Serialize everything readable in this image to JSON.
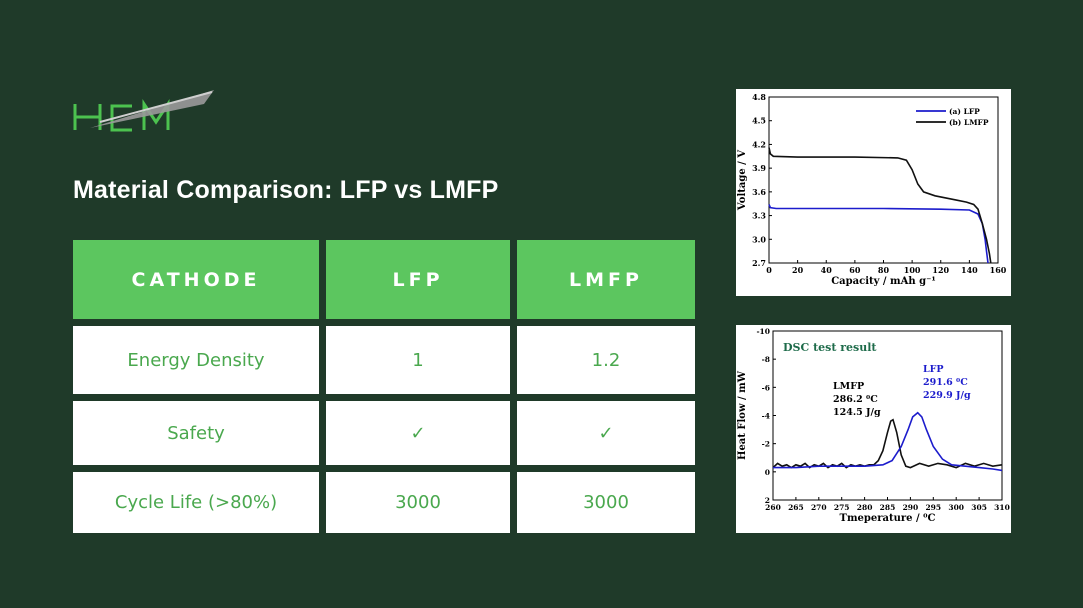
{
  "brand": {
    "logo_text": "HCM",
    "colors": {
      "green": "#4cc24f",
      "gray": "#9a9a9a"
    }
  },
  "page": {
    "title": "Material Comparison: LFP vs LMFP"
  },
  "table": {
    "headers": [
      "CATHODE",
      "LFP",
      "LMFP"
    ],
    "rows": [
      [
        "Energy Density",
        "1",
        "1.2"
      ],
      [
        "Safety",
        "✓",
        "✓"
      ],
      [
        "Cycle Life (>80%)",
        "3000",
        "3000"
      ]
    ],
    "colors": {
      "header_bg": "#5cc65f",
      "text": "#4aa84e",
      "cell_bg": "#ffffff"
    }
  },
  "chart_data": [
    {
      "type": "line",
      "title": "",
      "xlabel": "Capacity / mAh g⁻¹",
      "ylabel": "Voltage / V",
      "xlim": [
        0,
        160
      ],
      "ylim": [
        2.7,
        4.8
      ],
      "xticks": [
        0,
        20,
        40,
        60,
        80,
        100,
        120,
        140,
        160
      ],
      "yticks": [
        2.7,
        3.0,
        3.3,
        3.6,
        3.9,
        4.2,
        4.5,
        4.8
      ],
      "legend_position": "top-right",
      "series": [
        {
          "name": "(a) LFP",
          "color": "#1c1ccc",
          "points": [
            [
              0,
              3.44
            ],
            [
              1,
              3.4
            ],
            [
              5,
              3.39
            ],
            [
              40,
              3.39
            ],
            [
              80,
              3.39
            ],
            [
              120,
              3.38
            ],
            [
              140,
              3.37
            ],
            [
              146,
              3.32
            ],
            [
              149,
              3.2
            ],
            [
              151,
              3.0
            ],
            [
              152,
              2.85
            ],
            [
              153,
              2.7
            ]
          ]
        },
        {
          "name": "(b) LMFP",
          "color": "#111111",
          "points": [
            [
              0,
              4.16
            ],
            [
              1,
              4.08
            ],
            [
              3,
              4.05
            ],
            [
              20,
              4.04
            ],
            [
              60,
              4.04
            ],
            [
              90,
              4.03
            ],
            [
              96,
              4.0
            ],
            [
              100,
              3.88
            ],
            [
              104,
              3.7
            ],
            [
              108,
              3.6
            ],
            [
              116,
              3.55
            ],
            [
              130,
              3.5
            ],
            [
              138,
              3.47
            ],
            [
              143,
              3.44
            ],
            [
              146,
              3.38
            ],
            [
              149,
              3.2
            ],
            [
              152,
              3.0
            ],
            [
              154,
              2.82
            ],
            [
              155,
              2.7
            ]
          ]
        }
      ]
    },
    {
      "type": "line",
      "title": "DSC test result",
      "xlabel": "Tmeperature / ⁰C",
      "ylabel": "Heat Flow / mW",
      "xlim": [
        260,
        310
      ],
      "ylim": [
        2,
        -10
      ],
      "xticks": [
        260,
        265,
        270,
        275,
        280,
        285,
        290,
        295,
        300,
        305,
        310
      ],
      "yticks": [
        -10,
        -8,
        -6,
        -4,
        -2,
        0,
        2
      ],
      "annotations": [
        {
          "series": "LMFP",
          "lines": [
            "LMFP",
            "286.2 ⁰C",
            "124.5 J/g"
          ]
        },
        {
          "series": "LFP",
          "lines": [
            "LFP",
            "291.6 ⁰C",
            "229.9 J/g"
          ]
        }
      ],
      "series": [
        {
          "name": "LMFP",
          "color": "#111111",
          "points": [
            [
              260,
              -0.3
            ],
            [
              261,
              -0.6
            ],
            [
              262,
              -0.4
            ],
            [
              263,
              -0.5
            ],
            [
              264,
              -0.3
            ],
            [
              265,
              -0.5
            ],
            [
              266,
              -0.4
            ],
            [
              267,
              -0.6
            ],
            [
              268,
              -0.3
            ],
            [
              269,
              -0.5
            ],
            [
              270,
              -0.4
            ],
            [
              271,
              -0.6
            ],
            [
              272,
              -0.3
            ],
            [
              273,
              -0.5
            ],
            [
              274,
              -0.4
            ],
            [
              275,
              -0.6
            ],
            [
              276,
              -0.3
            ],
            [
              277,
              -0.5
            ],
            [
              278,
              -0.4
            ],
            [
              279,
              -0.5
            ],
            [
              280,
              -0.4
            ],
            [
              281,
              -0.5
            ],
            [
              282,
              -0.5
            ],
            [
              283,
              -0.8
            ],
            [
              284,
              -1.5
            ],
            [
              285,
              -2.8
            ],
            [
              285.7,
              -3.6
            ],
            [
              286.2,
              -3.7
            ],
            [
              287,
              -2.8
            ],
            [
              288,
              -1.2
            ],
            [
              289,
              -0.4
            ],
            [
              290,
              -0.3
            ],
            [
              292,
              -0.6
            ],
            [
              294,
              -0.4
            ],
            [
              296,
              -0.6
            ],
            [
              298,
              -0.5
            ],
            [
              300,
              -0.3
            ],
            [
              302,
              -0.6
            ],
            [
              304,
              -0.4
            ],
            [
              306,
              -0.6
            ],
            [
              308,
              -0.4
            ],
            [
              310,
              -0.5
            ]
          ]
        },
        {
          "name": "LFP",
          "color": "#1c1ccc",
          "points": [
            [
              260,
              -0.3
            ],
            [
              265,
              -0.3
            ],
            [
              270,
              -0.4
            ],
            [
              275,
              -0.4
            ],
            [
              280,
              -0.4
            ],
            [
              284,
              -0.5
            ],
            [
              286,
              -0.8
            ],
            [
              288,
              -1.8
            ],
            [
              289.5,
              -3.0
            ],
            [
              290.5,
              -3.9
            ],
            [
              291.6,
              -4.2
            ],
            [
              292.5,
              -3.9
            ],
            [
              293.5,
              -3.0
            ],
            [
              295,
              -1.8
            ],
            [
              297,
              -0.9
            ],
            [
              299,
              -0.5
            ],
            [
              302,
              -0.4
            ],
            [
              305,
              -0.3
            ],
            [
              308,
              -0.2
            ],
            [
              310,
              -0.1
            ]
          ]
        }
      ]
    }
  ]
}
